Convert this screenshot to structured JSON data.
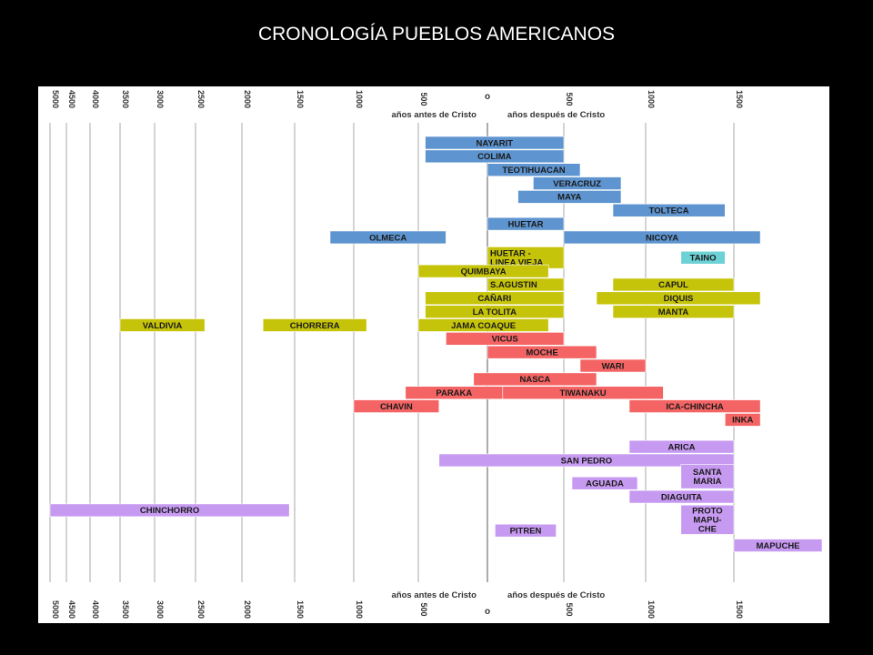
{
  "title": "CRONOLOGÍA PUEBLOS AMERICANOS",
  "chart_data": {
    "type": "bar",
    "orientation": "horizontal-timeline",
    "title": "CRONOLOGÍA PUEBLOS AMERICANOS",
    "xlim": [
      -5000,
      1700
    ],
    "grid": true,
    "label_before": "años antes de Cristo",
    "label_after": "años después de Cristo",
    "ticks_before": [
      {
        "value": -5000,
        "label": "5000"
      },
      {
        "value": -4500,
        "label": "4500"
      },
      {
        "value": -4000,
        "label": "4000"
      },
      {
        "value": -3500,
        "label": "3500"
      },
      {
        "value": -3000,
        "label": "3000"
      },
      {
        "value": -2500,
        "label": "2500"
      },
      {
        "value": -2000,
        "label": "2000"
      },
      {
        "value": -1500,
        "label": "1500"
      },
      {
        "value": -1000,
        "label": "1000"
      },
      {
        "value": -500,
        "label": "500"
      }
    ],
    "ticks_after": [
      {
        "value": 0,
        "label": "o"
      },
      {
        "value": 500,
        "label": "500"
      },
      {
        "value": 1000,
        "label": "1000"
      },
      {
        "value": 1500,
        "label": "1500"
      }
    ],
    "colors": {
      "blue": "#5e94cf",
      "olive": "#c6c40a",
      "cyan": "#6dd2d6",
      "red": "#f46464",
      "purple": "#c79af2"
    },
    "bars": [
      {
        "label": "NAYARIT",
        "start": -450,
        "end": 500,
        "row": 0,
        "color": "blue"
      },
      {
        "label": "COLIMA",
        "start": -450,
        "end": 500,
        "row": 1,
        "color": "blue"
      },
      {
        "label": "TEOTIHUACAN",
        "start": 0,
        "end": 600,
        "row": 2,
        "color": "blue"
      },
      {
        "label": "VERACRUZ",
        "start": 300,
        "end": 850,
        "row": 3,
        "color": "blue"
      },
      {
        "label": "MAYA",
        "start": 200,
        "end": 850,
        "row": 4,
        "color": "blue"
      },
      {
        "label": "TOLTECA",
        "start": 800,
        "end": 1450,
        "row": 5,
        "color": "blue"
      },
      {
        "label": "HUETAR",
        "start": 0,
        "end": 500,
        "row": 6,
        "color": "blue"
      },
      {
        "label": "OLMECA",
        "start": -1200,
        "end": -300,
        "row": 7,
        "color": "blue"
      },
      {
        "label": "NICOYA",
        "start": 500,
        "end": 1650,
        "row": 7,
        "color": "blue"
      },
      {
        "label": "HUETAR - LINEA VIEJA",
        "start": 0,
        "end": 500,
        "row": 8.5,
        "color": "olive",
        "height": 1.7
      },
      {
        "label": "TAINO",
        "start": 1200,
        "end": 1450,
        "row": 8.5,
        "color": "cyan"
      },
      {
        "label": "QUIMBAYA",
        "start": -500,
        "end": 400,
        "row": 9.5,
        "color": "olive"
      },
      {
        "label": "S.AGUSTIN",
        "start": 0,
        "end": 500,
        "row": 10.5,
        "color": "olive"
      },
      {
        "label": "CAPUL",
        "start": 800,
        "end": 1500,
        "row": 10.5,
        "color": "olive"
      },
      {
        "label": "CAÑARI",
        "start": -450,
        "end": 500,
        "row": 11.5,
        "color": "olive"
      },
      {
        "label": "DIQUIS",
        "start": 700,
        "end": 1650,
        "row": 11.5,
        "color": "olive"
      },
      {
        "label": "LA TOLITA",
        "start": -450,
        "end": 500,
        "row": 12.5,
        "color": "olive"
      },
      {
        "label": "MANTA",
        "start": 800,
        "end": 1500,
        "row": 12.5,
        "color": "olive"
      },
      {
        "label": "VALDIVIA",
        "start": -3500,
        "end": -2400,
        "row": 13.5,
        "color": "olive"
      },
      {
        "label": "CHORRERA",
        "start": -1800,
        "end": -900,
        "row": 13.5,
        "color": "olive"
      },
      {
        "label": "JAMA COAQUE",
        "start": -500,
        "end": 400,
        "row": 13.5,
        "color": "olive"
      },
      {
        "label": "VICUS",
        "start": -300,
        "end": 500,
        "row": 14.5,
        "color": "red"
      },
      {
        "label": "MOCHE",
        "start": 0,
        "end": 700,
        "row": 15.5,
        "color": "red"
      },
      {
        "label": "WARI",
        "start": 600,
        "end": 1000,
        "row": 16.5,
        "color": "red"
      },
      {
        "label": "NASCA",
        "start": -100,
        "end": 700,
        "row": 17.5,
        "color": "red"
      },
      {
        "label": "PARAKA",
        "start": -600,
        "end": 100,
        "row": 18.5,
        "color": "red"
      },
      {
        "label": "TIWANAKU",
        "start": 100,
        "end": 1100,
        "row": 18.5,
        "color": "red"
      },
      {
        "label": "CHAVIN",
        "start": -1000,
        "end": -350,
        "row": 19.5,
        "color": "red"
      },
      {
        "label": "ICA-CHINCHA",
        "start": 900,
        "end": 1650,
        "row": 19.5,
        "color": "red"
      },
      {
        "label": "INKA",
        "start": 1450,
        "end": 1650,
        "row": 20.5,
        "color": "red"
      },
      {
        "label": "ARICA",
        "start": 900,
        "end": 1500,
        "row": 22.5,
        "color": "purple"
      },
      {
        "label": "SAN PEDRO",
        "start": -350,
        "end": 1500,
        "row": 23.5,
        "color": "purple"
      },
      {
        "label": "SANTA MARIA",
        "start": 1200,
        "end": 1500,
        "row": 24.7,
        "color": "purple",
        "height": 1.9
      },
      {
        "label": "AGUADA",
        "start": 550,
        "end": 950,
        "row": 25.2,
        "color": "purple"
      },
      {
        "label": "DIAGUITA",
        "start": 900,
        "end": 1500,
        "row": 26.2,
        "color": "purple"
      },
      {
        "label": "CHINCHORRO",
        "start": -5000,
        "end": -1550,
        "row": 27.2,
        "color": "purple"
      },
      {
        "label": "PROTO MAPU- CHE",
        "start": 1200,
        "end": 1500,
        "row": 27.9,
        "color": "purple",
        "height": 2.3
      },
      {
        "label": "PITREN",
        "start": 50,
        "end": 450,
        "row": 28.7,
        "color": "purple"
      },
      {
        "label": "MAPUCHE",
        "start": 1500,
        "end": 2000,
        "row": 29.8,
        "color": "purple"
      }
    ]
  }
}
